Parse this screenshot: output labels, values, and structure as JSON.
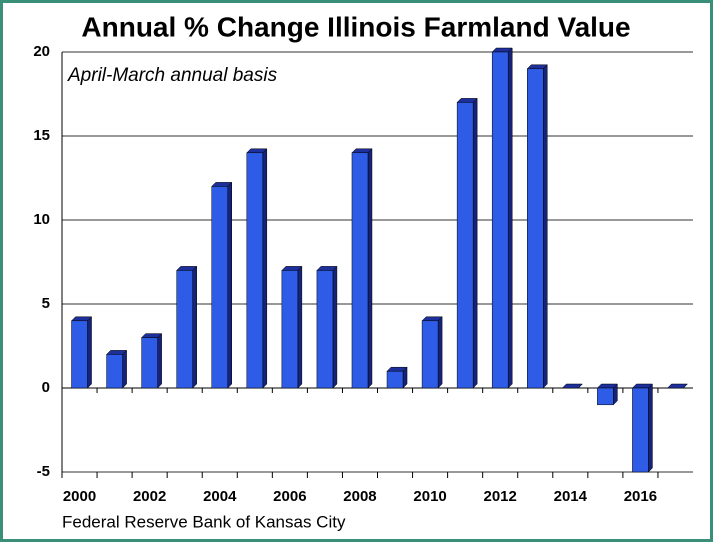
{
  "chart_data": {
    "type": "bar3d",
    "title": "Annual % Change Illinois Farmland Value",
    "subtitle": "April-March annual basis",
    "source": "Federal Reserve Bank of Kansas City",
    "categories": [
      "2000",
      null,
      "2002",
      null,
      "2004",
      null,
      "2006",
      null,
      "2008",
      null,
      "2010",
      null,
      "2012",
      null,
      "2014",
      null,
      "2016",
      null
    ],
    "values": [
      4,
      2,
      3,
      7,
      12,
      14,
      7,
      7,
      14,
      1,
      4,
      17,
      20,
      19,
      0,
      -1,
      -5,
      0
    ],
    "color": "#2f5ce6",
    "ylim": [
      -5,
      20
    ],
    "yticks": [
      -5,
      0,
      5,
      10,
      15,
      20
    ],
    "grid": true
  }
}
